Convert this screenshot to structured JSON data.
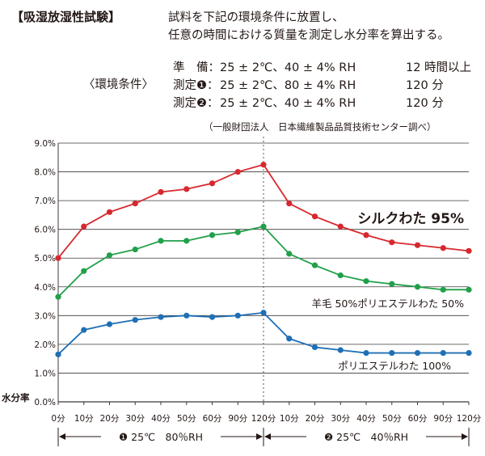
{
  "header": {
    "title": "【吸湿放湿性試験】",
    "desc_line1": "試料を下記の環境条件に放置し、",
    "desc_line2": "任意の時間における質量を測定し水分率を算出する。"
  },
  "conditions": {
    "label": "〈環境条件〉",
    "rows": [
      {
        "name": "準　備：",
        "value": "25 ± 2℃、40 ± 4% RH",
        "duration": "12 時間以上"
      },
      {
        "name": "測定❶：",
        "value": "25 ± 2℃、80 ± 4% RH",
        "duration": "120 分"
      },
      {
        "name": "測定❷：",
        "value": "25 ± 2℃、40 ± 4% RH",
        "duration": "120 分"
      }
    ]
  },
  "source": "（一般財団法人　日本繊維製品品質技術センター調べ）",
  "chart_data": {
    "type": "line",
    "ylabel": "水分率",
    "ylim": [
      0,
      9
    ],
    "yticks": [
      "0.0%",
      "1.0%",
      "2.0%",
      "3.0%",
      "4.0%",
      "5.0%",
      "6.0%",
      "7.0%",
      "8.0%",
      "9.0%"
    ],
    "categories": [
      "0分",
      "10分",
      "20分",
      "30分",
      "40分",
      "50分",
      "60分",
      "90分",
      "120分",
      "10分",
      "20分",
      "30分",
      "40分",
      "50分",
      "60分",
      "90分",
      "120分"
    ],
    "grid": true,
    "series": [
      {
        "name": "シルクわた 95%",
        "color": "#d7282f",
        "values": [
          5.0,
          6.1,
          6.6,
          6.9,
          7.3,
          7.4,
          7.6,
          8.0,
          8.25,
          6.9,
          6.45,
          6.1,
          5.8,
          5.55,
          5.45,
          5.35,
          5.25
        ]
      },
      {
        "name": "羊毛 50%ポリエステルわた 50%",
        "color": "#21a04a",
        "values": [
          3.65,
          4.55,
          5.1,
          5.3,
          5.6,
          5.6,
          5.8,
          5.9,
          6.1,
          5.15,
          4.75,
          4.4,
          4.2,
          4.1,
          4.0,
          3.9,
          3.9
        ]
      },
      {
        "name": "ポリエステルわた 100%",
        "color": "#1f6fb5",
        "values": [
          1.65,
          2.5,
          2.7,
          2.85,
          2.95,
          3.0,
          2.95,
          3.0,
          3.1,
          2.2,
          1.9,
          1.8,
          1.7,
          1.7,
          1.7,
          1.7,
          1.7
        ]
      }
    ],
    "phases": [
      {
        "label": "❶ 25℃　80％RH"
      },
      {
        "label": "❷ 25℃　40％RH"
      }
    ]
  }
}
